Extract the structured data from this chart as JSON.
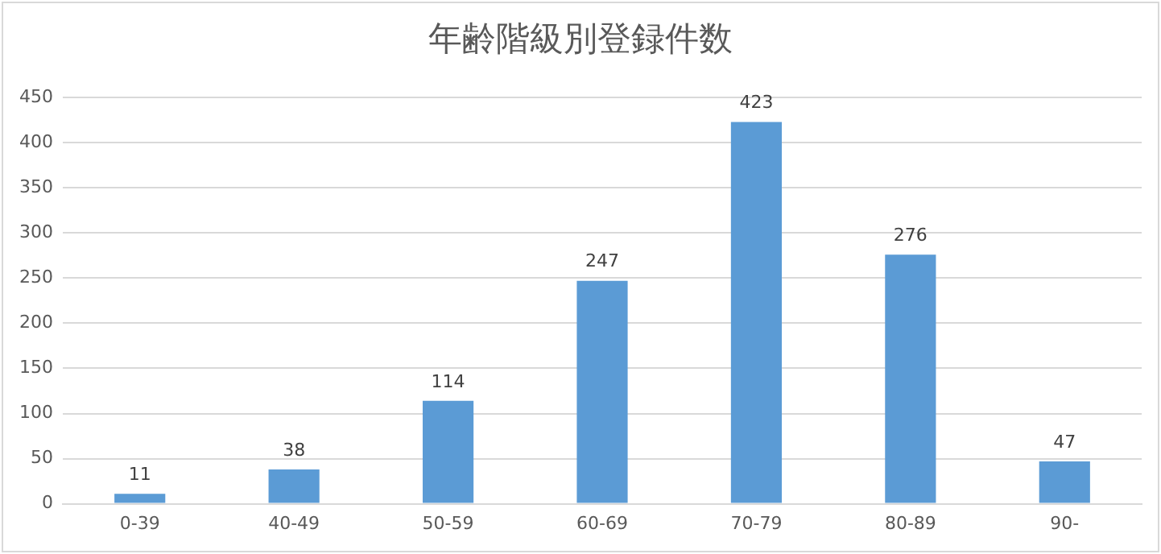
{
  "chart_data": {
    "type": "bar",
    "title": "年齢階級別登録件数",
    "categories": [
      "0-39",
      "40-49",
      "50-59",
      "60-69",
      "70-79",
      "80-89",
      "90-"
    ],
    "values": [
      11,
      38,
      114,
      247,
      423,
      276,
      47
    ],
    "color": "#5b9bd5",
    "ylim": [
      0,
      450
    ],
    "yticks": [
      0,
      50,
      100,
      150,
      200,
      250,
      300,
      350,
      400,
      450
    ],
    "grid": "y",
    "legend": false,
    "data_labels": true
  }
}
